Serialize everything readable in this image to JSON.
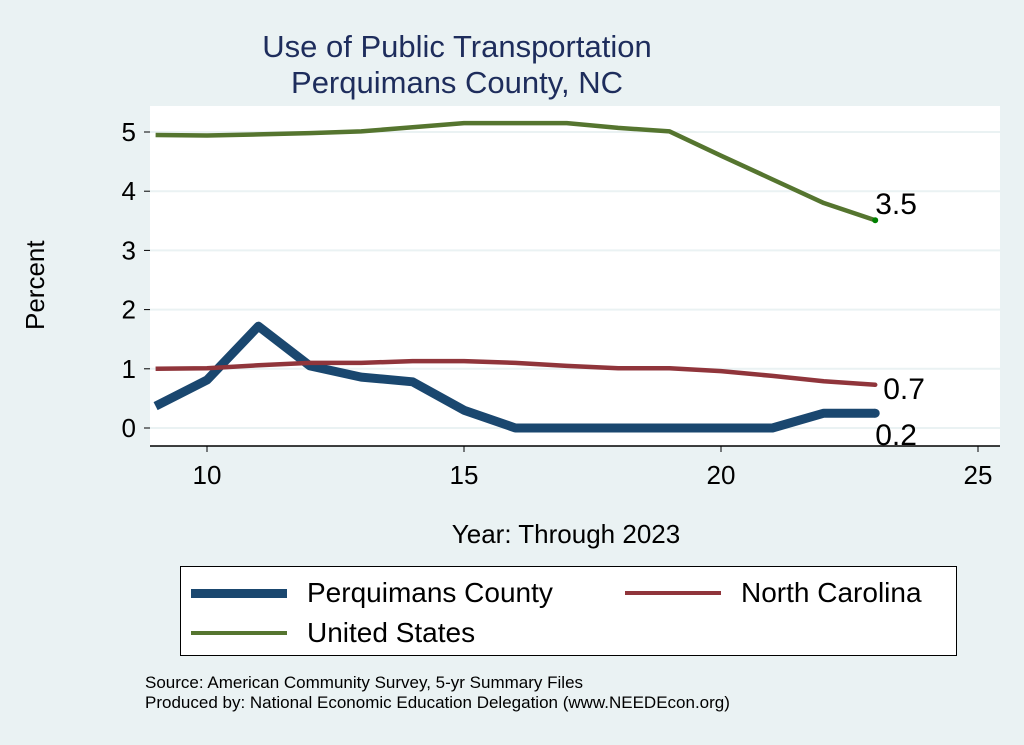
{
  "chart_data": {
    "type": "line",
    "title": "Use of Public Transportation",
    "subtitle": "Perquimans County, NC",
    "xlabel": "Year: Through 2023",
    "ylabel": "Percent",
    "xlim": [
      9,
      25.3
    ],
    "ylim": [
      -0.3,
      5.5
    ],
    "xticks": [
      10,
      15,
      20,
      25
    ],
    "yticks": [
      0,
      1,
      2,
      3,
      4,
      5
    ],
    "grid": true,
    "legend_position": "bottom",
    "x": [
      9,
      10,
      11,
      12,
      13,
      14,
      15,
      16,
      17,
      18,
      19,
      20,
      21,
      22,
      23
    ],
    "series": [
      {
        "name": "Perquimans County",
        "color": "#1a476f",
        "width": 9,
        "end_label": "0.2",
        "values": [
          0.37,
          0.81,
          1.72,
          1.05,
          0.86,
          0.78,
          0.3,
          0,
          0,
          0,
          0,
          0,
          0,
          0.25,
          0.25
        ]
      },
      {
        "name": "North Carolina",
        "color": "#90353b",
        "width": 4.5,
        "end_label": "0.7",
        "values": [
          1.0,
          1.01,
          1.06,
          1.1,
          1.1,
          1.13,
          1.13,
          1.1,
          1.05,
          1.01,
          1.01,
          0.96,
          0.88,
          0.79,
          0.73
        ]
      },
      {
        "name": "United States",
        "color": "#55752f",
        "width": 4.5,
        "end_label": "3.5",
        "values": [
          4.95,
          4.94,
          4.96,
          4.98,
          5.01,
          5.08,
          5.15,
          5.15,
          5.15,
          5.07,
          5.01,
          4.6,
          4.2,
          3.8,
          3.51
        ]
      }
    ]
  },
  "notes": {
    "source": "Source: American Community Survey, 5-yr Summary Files",
    "produced": "Produced by: National Economic Education Delegation (www.NEEDEcon.org)"
  }
}
